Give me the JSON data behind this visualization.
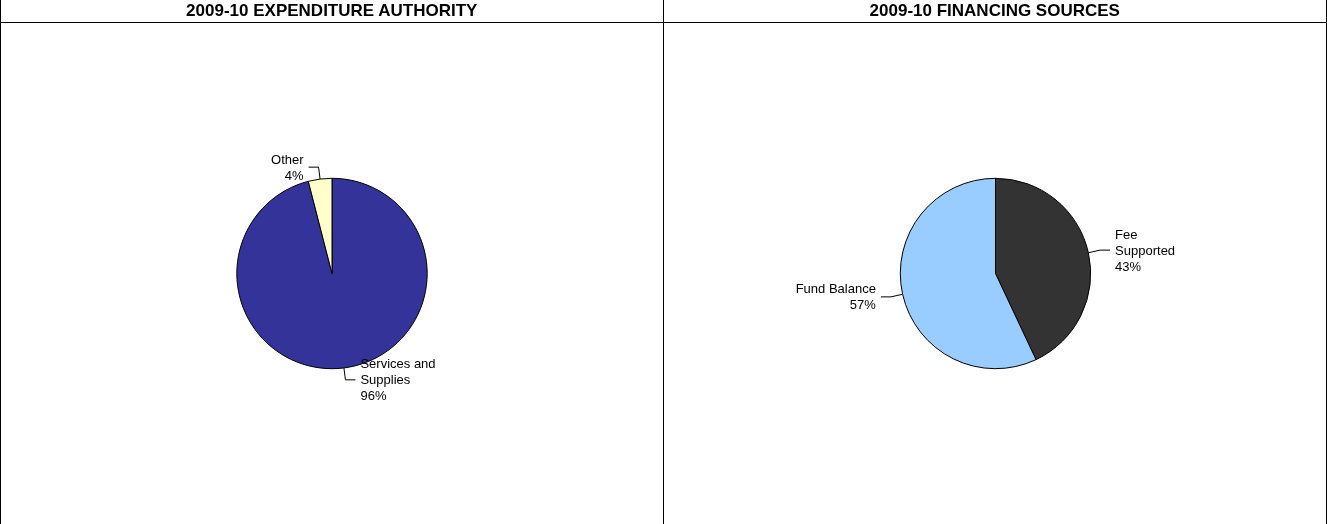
{
  "chart_data": [
    {
      "type": "pie",
      "title": "2009-10 EXPENDITURE AUTHORITY",
      "categories": [
        "Services and Supplies",
        "Other"
      ],
      "values": [
        96,
        4
      ],
      "value_labels": [
        "96%",
        "4%"
      ],
      "colors": [
        "#333399",
        "#ffffcc"
      ],
      "legend": false
    },
    {
      "type": "pie",
      "title": "2009-10 FINANCING SOURCES",
      "categories": [
        "Fee Supported",
        "Fund Balance"
      ],
      "values": [
        43,
        57
      ],
      "value_labels": [
        "43%",
        "57%"
      ],
      "colors": [
        "#333333",
        "#99ccff"
      ],
      "legend": false
    }
  ]
}
